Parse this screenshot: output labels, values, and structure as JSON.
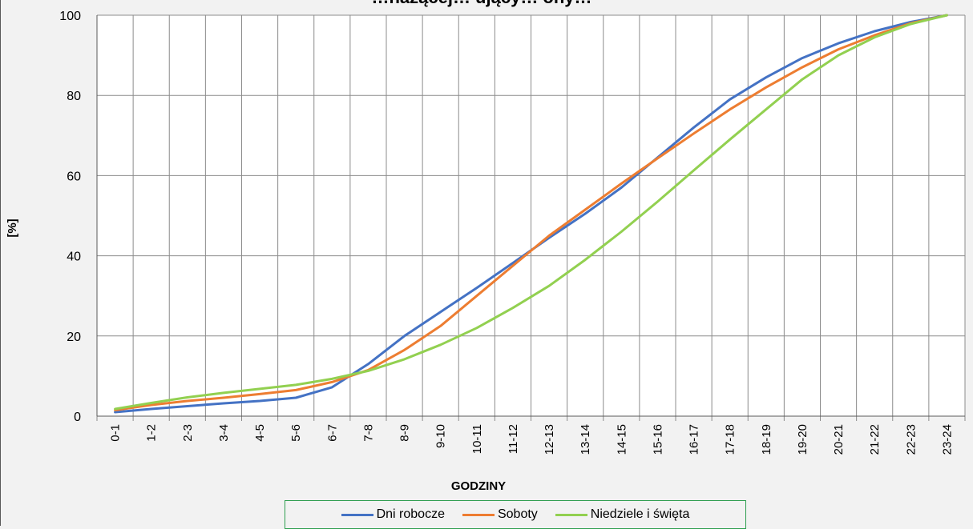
{
  "chart_data": {
    "type": "line",
    "title": "…nażącej… ujący… ony…",
    "xlabel": "GODZINY",
    "ylabel": "[%]",
    "ylim": [
      0,
      100
    ],
    "yticks": [
      0,
      20,
      40,
      60,
      80,
      100
    ],
    "grid": "vertical-and-horizontal",
    "legend_position": "bottom",
    "categories": [
      "0-1",
      "1-2",
      "2-3",
      "3-4",
      "4-5",
      "5-6",
      "6-7",
      "7-8",
      "8-9",
      "9-10",
      "10-11",
      "11-12",
      "12-13",
      "13-14",
      "14-15",
      "15-16",
      "16-17",
      "17-18",
      "18-19",
      "19-20",
      "20-21",
      "21-22",
      "22-23",
      "23-24"
    ],
    "series": [
      {
        "name": "Dni robocze",
        "color": "#4472c4",
        "values": [
          1.0,
          1.8,
          2.5,
          3.2,
          3.8,
          4.6,
          7.2,
          13.0,
          20.0,
          26.0,
          32.0,
          38.2,
          44.5,
          50.5,
          57.0,
          64.5,
          72.0,
          79.0,
          84.5,
          89.3,
          93.0,
          96.0,
          98.3,
          100
        ]
      },
      {
        "name": "Soboty",
        "color": "#ed7d31",
        "values": [
          1.5,
          2.8,
          3.8,
          4.6,
          5.5,
          6.5,
          8.5,
          11.5,
          16.5,
          22.5,
          30.0,
          37.5,
          45.0,
          51.5,
          58.0,
          64.3,
          70.5,
          76.5,
          82.0,
          87.0,
          91.5,
          95.0,
          98.0,
          100
        ]
      },
      {
        "name": "Niedziele i święta",
        "color": "#92d050",
        "values": [
          1.8,
          3.3,
          4.7,
          5.8,
          6.8,
          7.8,
          9.3,
          11.3,
          14.2,
          17.8,
          22.0,
          27.0,
          32.5,
          39.0,
          46.0,
          53.5,
          61.3,
          69.0,
          76.5,
          84.0,
          90.0,
          94.5,
          97.8,
          100
        ]
      }
    ]
  }
}
